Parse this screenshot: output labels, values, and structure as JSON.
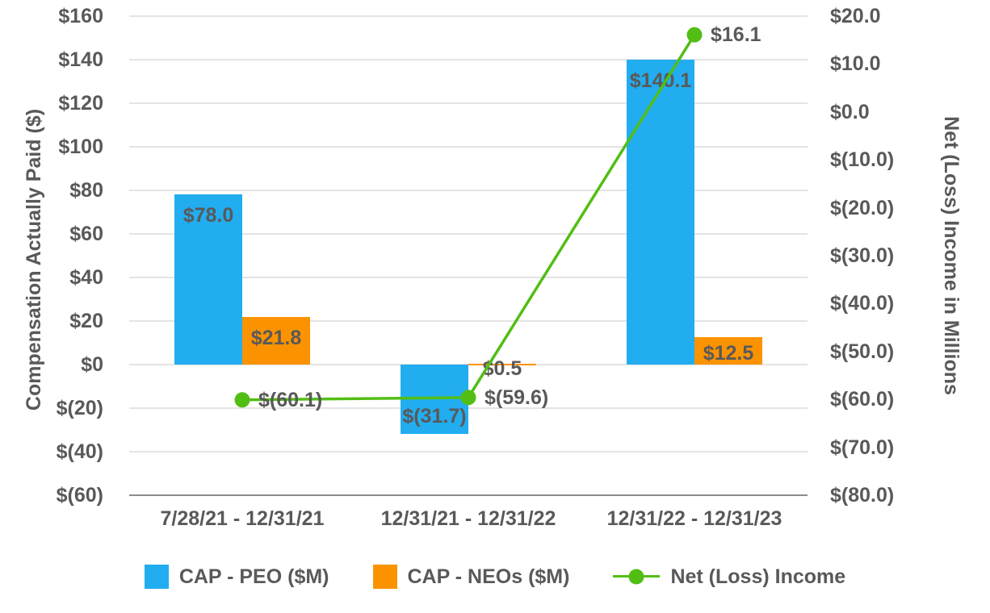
{
  "chart_data": {
    "type": "bar",
    "subtype": "combo bar + line, dual axis",
    "categories": [
      "7/28/21 - 12/31/21",
      "12/31/21 - 12/31/22",
      "12/31/22 - 12/31/23"
    ],
    "series": [
      {
        "name": "CAP - PEO ($M)",
        "kind": "bar",
        "axis": "left",
        "color": "#22ADF0",
        "values": [
          78.0,
          -31.7,
          140.1
        ],
        "labels": [
          "$78.0",
          "$(31.7)",
          "$140.1"
        ]
      },
      {
        "name": "CAP - NEOs ($M)",
        "kind": "bar",
        "axis": "left",
        "color": "#FB9300",
        "values": [
          21.8,
          0.5,
          12.5
        ],
        "labels": [
          "$21.8",
          "$0.5",
          "$12.5"
        ]
      },
      {
        "name": "Net (Loss) Income",
        "kind": "line",
        "axis": "right",
        "color": "#52BE14",
        "values": [
          -60.1,
          -59.6,
          16.1
        ],
        "labels": [
          "$(60.1)",
          "$(59.6)",
          "$16.1"
        ]
      }
    ],
    "left_axis": {
      "title": "Compensation Actually Paid ($)",
      "min": -60,
      "max": 160,
      "step": 20,
      "ticks": [
        "$160",
        "$140",
        "$120",
        "$100",
        "$80",
        "$60",
        "$40",
        "$20",
        "$0",
        "$(20)",
        "$(40)",
        "$(60)"
      ]
    },
    "right_axis": {
      "title": "Net (Loss) Income in Millions",
      "min": -80,
      "max": 20,
      "step": 10,
      "ticks": [
        "$20.0",
        "$10.0",
        "$0.0",
        "$(10.0)",
        "$(20.0)",
        "$(30.0)",
        "$(40.0)",
        "$(50.0)",
        "$(60.0)",
        "$(70.0)",
        "$(80.0)"
      ]
    },
    "grid": "horizontal gridlines aligned to left axis ticks",
    "legend_position": "bottom"
  },
  "styles": {
    "text_color": "#595959",
    "gridline_color": "#E4E4E4",
    "axis_line_color": "#8C8C8C",
    "background": "#FFFFFF"
  }
}
